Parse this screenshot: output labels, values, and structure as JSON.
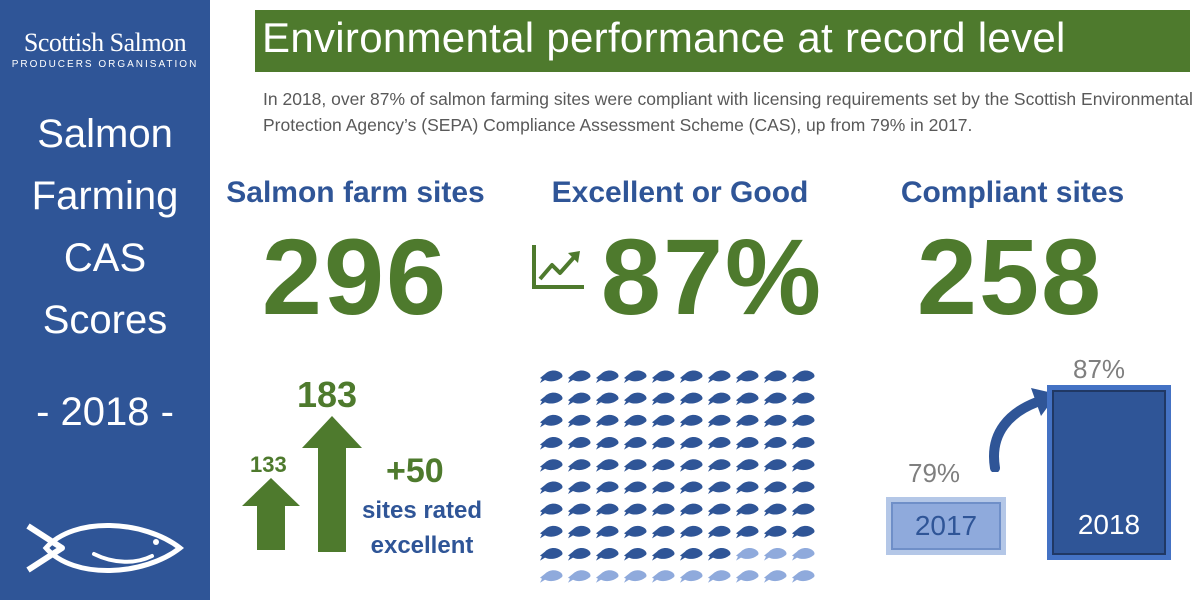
{
  "sidebar": {
    "brand_name": "Scottish Salmon",
    "brand_sub": "PRODUCERS ORGANISATION",
    "title_lines": [
      "Salmon",
      "Farming",
      "CAS",
      "Scores"
    ],
    "year": "- 2018 -"
  },
  "header": {
    "title": "Environmental performance at record level",
    "intro": "In 2018, over 87% of salmon farming sites were compliant with licensing requirements set by the Scottish Environmental Protection Agency’s (SEPA) Compliance Assessment Scheme (CAS), up from 79% in 2017."
  },
  "stats": [
    {
      "label": "Salmon farm sites",
      "value": "296"
    },
    {
      "label": "Excellent or Good",
      "value": "87%"
    },
    {
      "label": "Compliant sites",
      "value": "258"
    }
  ],
  "excellent": {
    "before": "133",
    "after": "183",
    "change": "+50",
    "caption_line1": "sites rated",
    "caption_line2": "excellent"
  },
  "fish_grid": {
    "total": 100,
    "highlighted": 87,
    "color_dark": "#2f5597",
    "color_light": "#8faadc"
  },
  "comparison": {
    "y2017_label": "2017",
    "y2017_value": "79%",
    "y2018_label": "2018",
    "y2018_value": "87%"
  },
  "colors": {
    "green": "#4e7a2d",
    "blue": "#2f5597"
  }
}
